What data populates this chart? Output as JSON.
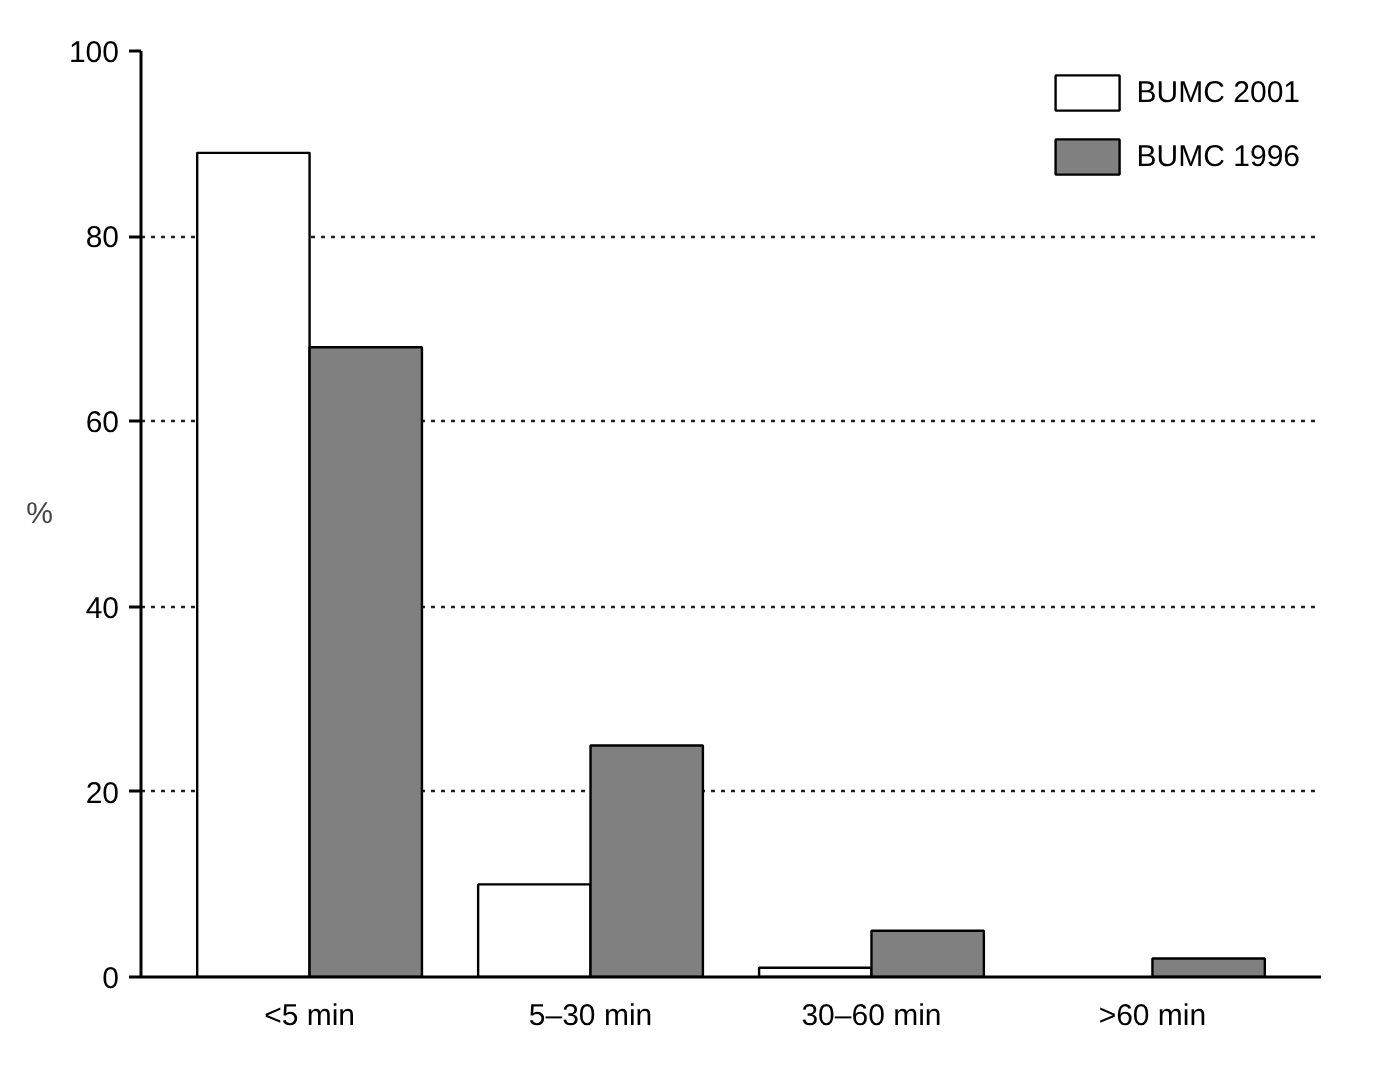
{
  "chart_data": {
    "type": "bar",
    "ylabel": "%",
    "categories": [
      "<5 min",
      "5–30 min",
      "30–60 min",
      ">60 min"
    ],
    "series": [
      {
        "name": "BUMC 2001",
        "color": "#ffffff",
        "values": [
          89,
          10,
          1,
          null
        ]
      },
      {
        "name": "BUMC 1996",
        "color": "#808080",
        "values": [
          68,
          25,
          5,
          2
        ]
      }
    ],
    "ylim": [
      0,
      100
    ],
    "yticks": [
      0,
      20,
      40,
      60,
      80,
      100
    ],
    "grid": "y",
    "legend": "top right"
  }
}
